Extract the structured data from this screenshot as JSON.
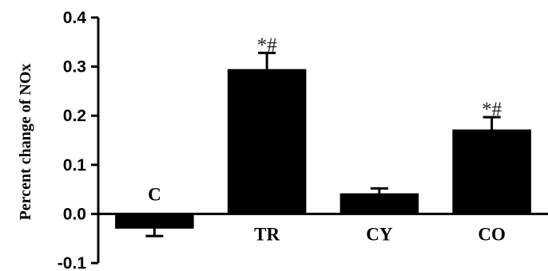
{
  "chart_data": {
    "type": "bar",
    "categories": [
      "C",
      "TR",
      "CY",
      "CO"
    ],
    "values": [
      -0.03,
      0.295,
      0.042,
      0.172
    ],
    "errors": [
      0.015,
      0.033,
      0.01,
      0.025
    ],
    "annotations": [
      "",
      "*#",
      "",
      "*#"
    ],
    "ylabel": "Percent change of NOx",
    "xlabel": "",
    "ylim": [
      -0.1,
      0.4
    ],
    "yticks": [
      "0.4",
      "0.3",
      "0.2",
      "0.1",
      "0.0",
      "-0.1"
    ],
    "grid": false,
    "bar_color": "#000000"
  }
}
